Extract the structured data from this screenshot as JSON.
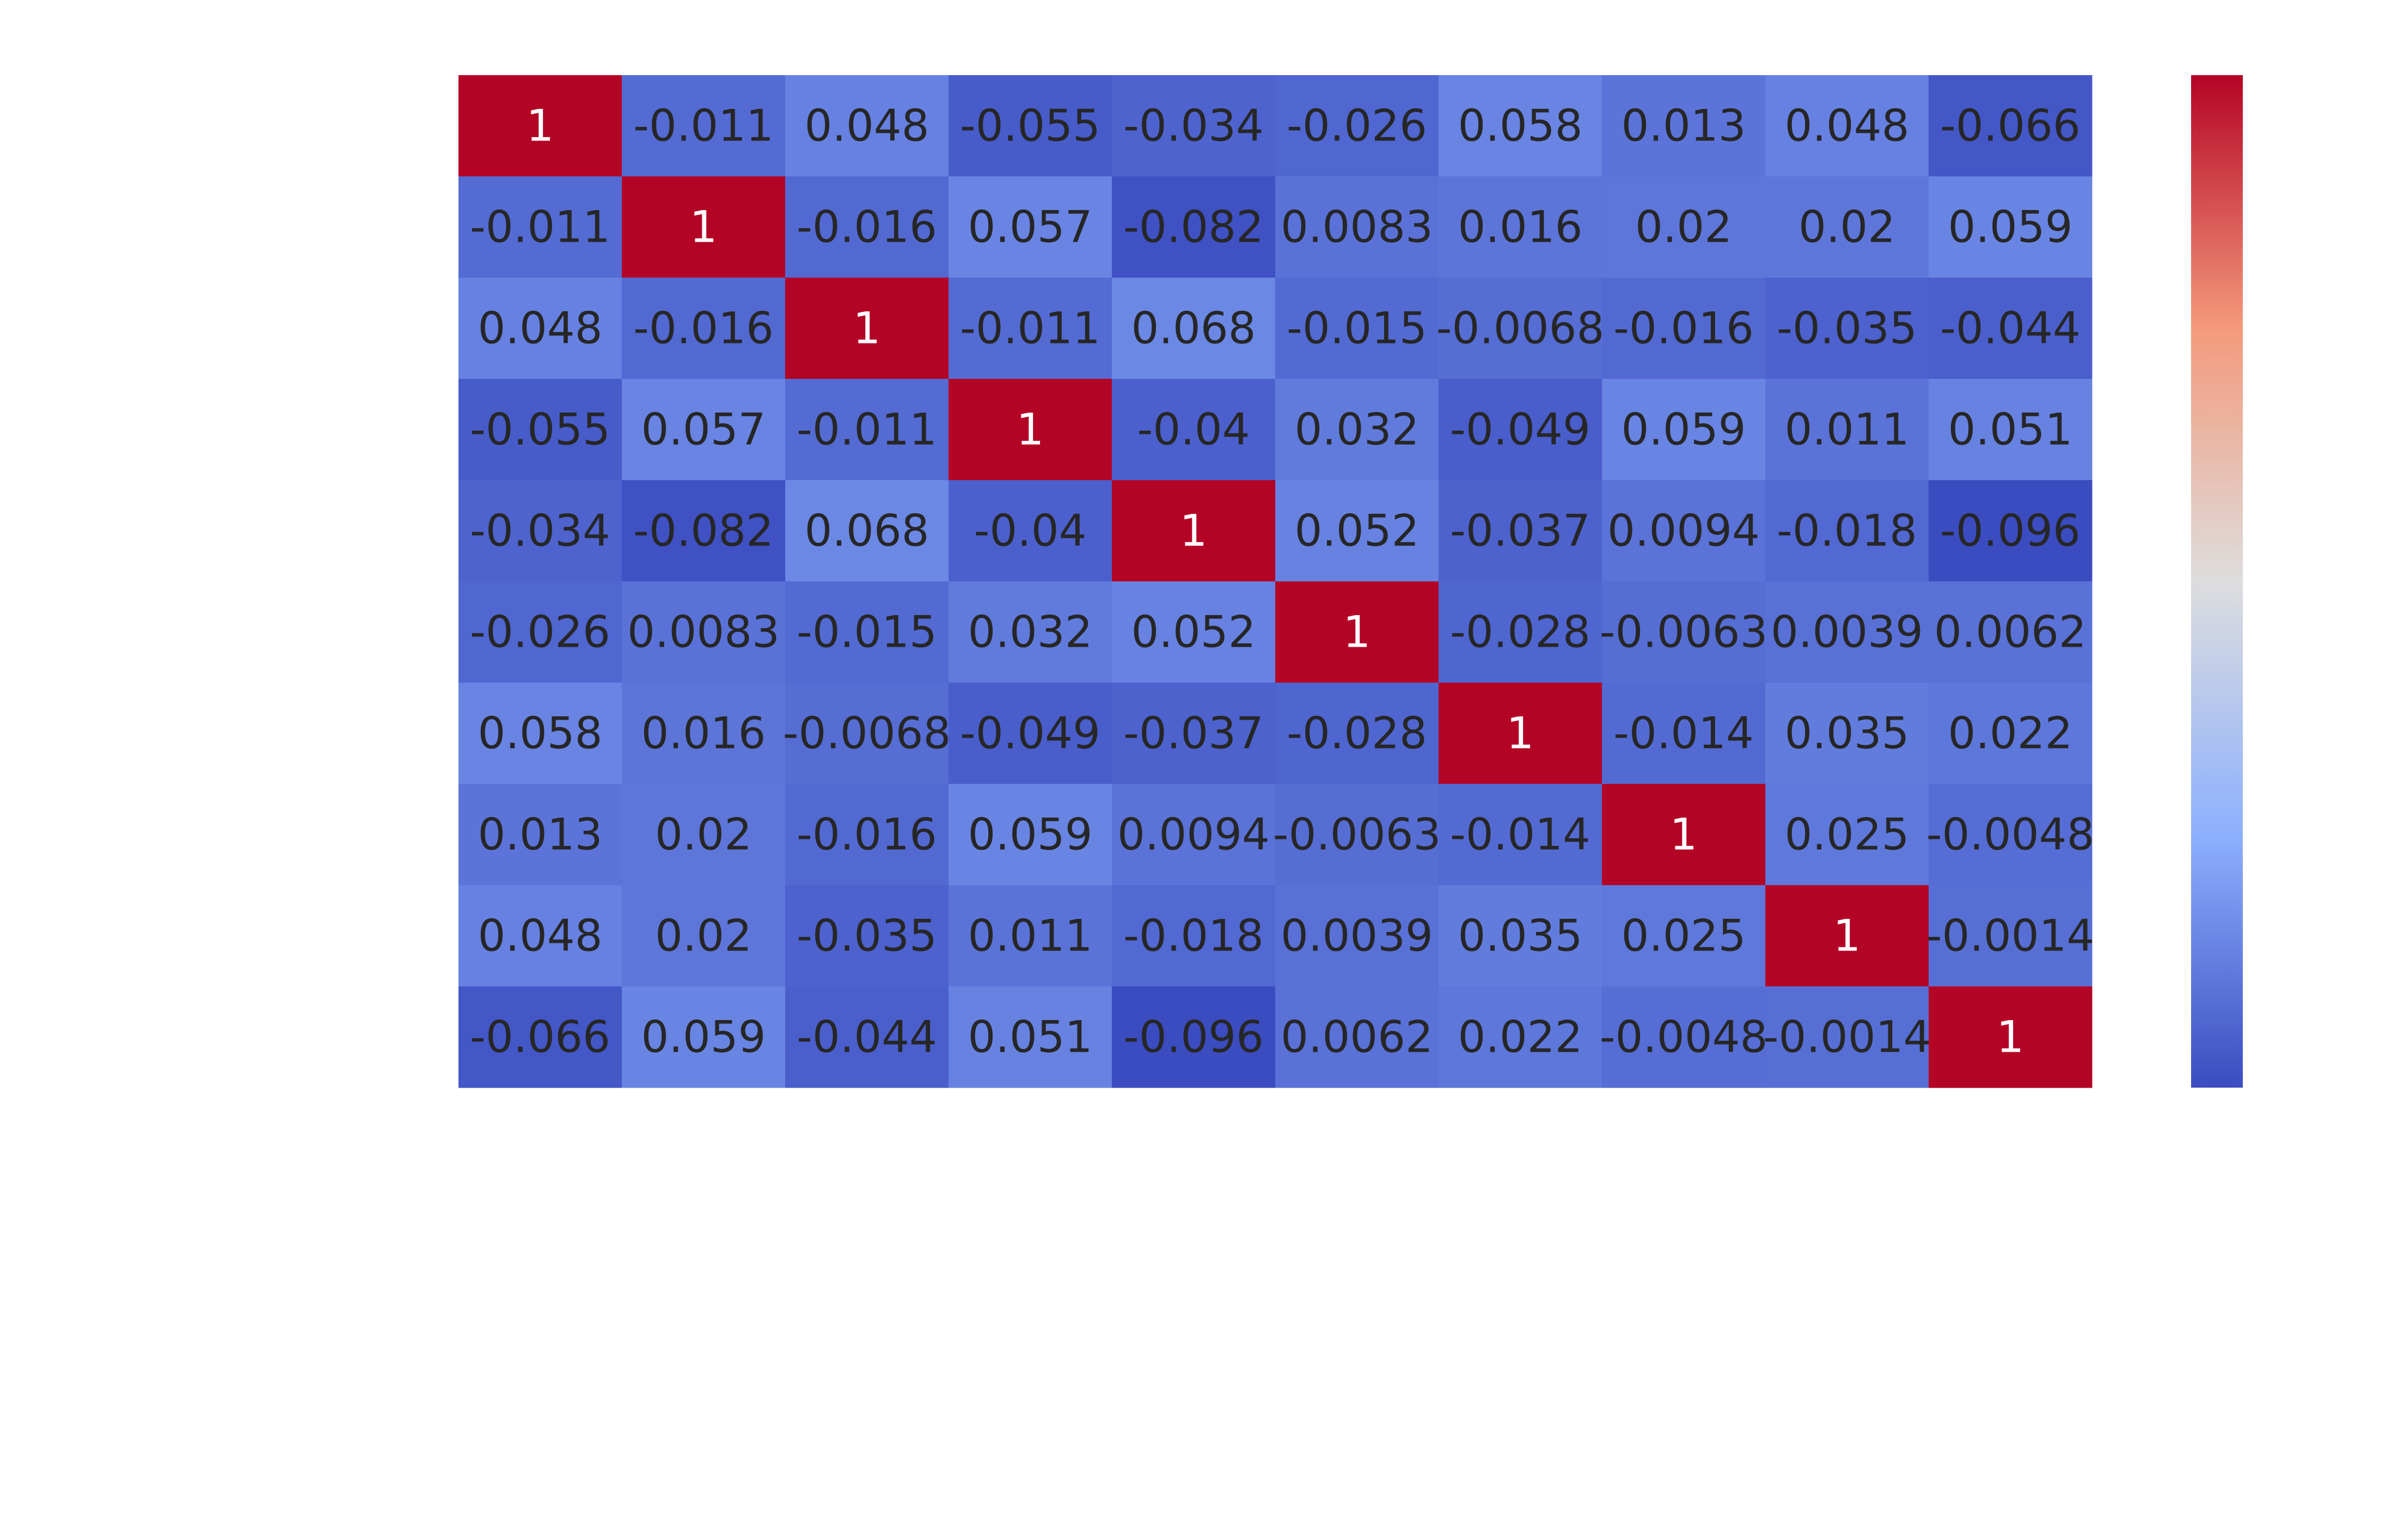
{
  "chart_data": {
    "type": "heatmap",
    "title": "",
    "xlabel": "",
    "ylabel": "",
    "colormap": "coolwarm",
    "vmin": -0.096,
    "vmax": 1,
    "colorbar": true,
    "cell_labels_visible": true,
    "row_labels_visible": false,
    "column_labels_visible": false,
    "matrix": [
      [
        "1",
        "-0.011",
        "0.048",
        "-0.055",
        "-0.034",
        "-0.026",
        "0.058",
        "0.013",
        "0.048",
        "-0.066"
      ],
      [
        "-0.011",
        "1",
        "-0.016",
        "0.057",
        "-0.082",
        "0.0083",
        "0.016",
        "0.02",
        "0.02",
        "0.059"
      ],
      [
        "0.048",
        "-0.016",
        "1",
        "-0.011",
        "0.068",
        "-0.015",
        "-0.0068",
        "-0.016",
        "-0.035",
        "-0.044"
      ],
      [
        "-0.055",
        "0.057",
        "-0.011",
        "1",
        "-0.04",
        "0.032",
        "-0.049",
        "0.059",
        "0.011",
        "0.051"
      ],
      [
        "-0.034",
        "-0.082",
        "0.068",
        "-0.04",
        "1",
        "0.052",
        "-0.037",
        "0.0094",
        "-0.018",
        "-0.096"
      ],
      [
        "-0.026",
        "0.0083",
        "-0.015",
        "0.032",
        "0.052",
        "1",
        "-0.028",
        "-0.0063",
        "0.0039",
        "0.0062"
      ],
      [
        "0.058",
        "0.016",
        "-0.0068",
        "-0.049",
        "-0.037",
        "-0.028",
        "1",
        "-0.014",
        "0.035",
        "0.022"
      ],
      [
        "0.013",
        "0.02",
        "-0.016",
        "0.059",
        "0.0094",
        "-0.0063",
        "-0.014",
        "1",
        "0.025",
        "-0.0048"
      ],
      [
        "0.048",
        "0.02",
        "-0.035",
        "0.011",
        "-0.018",
        "0.0039",
        "0.035",
        "0.025",
        "1",
        "-0.0014"
      ],
      [
        "-0.066",
        "0.059",
        "-0.044",
        "0.051",
        "-0.096",
        "0.0062",
        "0.022",
        "-0.0048",
        "-0.0014",
        "1"
      ]
    ]
  },
  "colors": {
    "text_dark": "#262626",
    "text_light": "#ffffff",
    "background": "#ffffff"
  }
}
